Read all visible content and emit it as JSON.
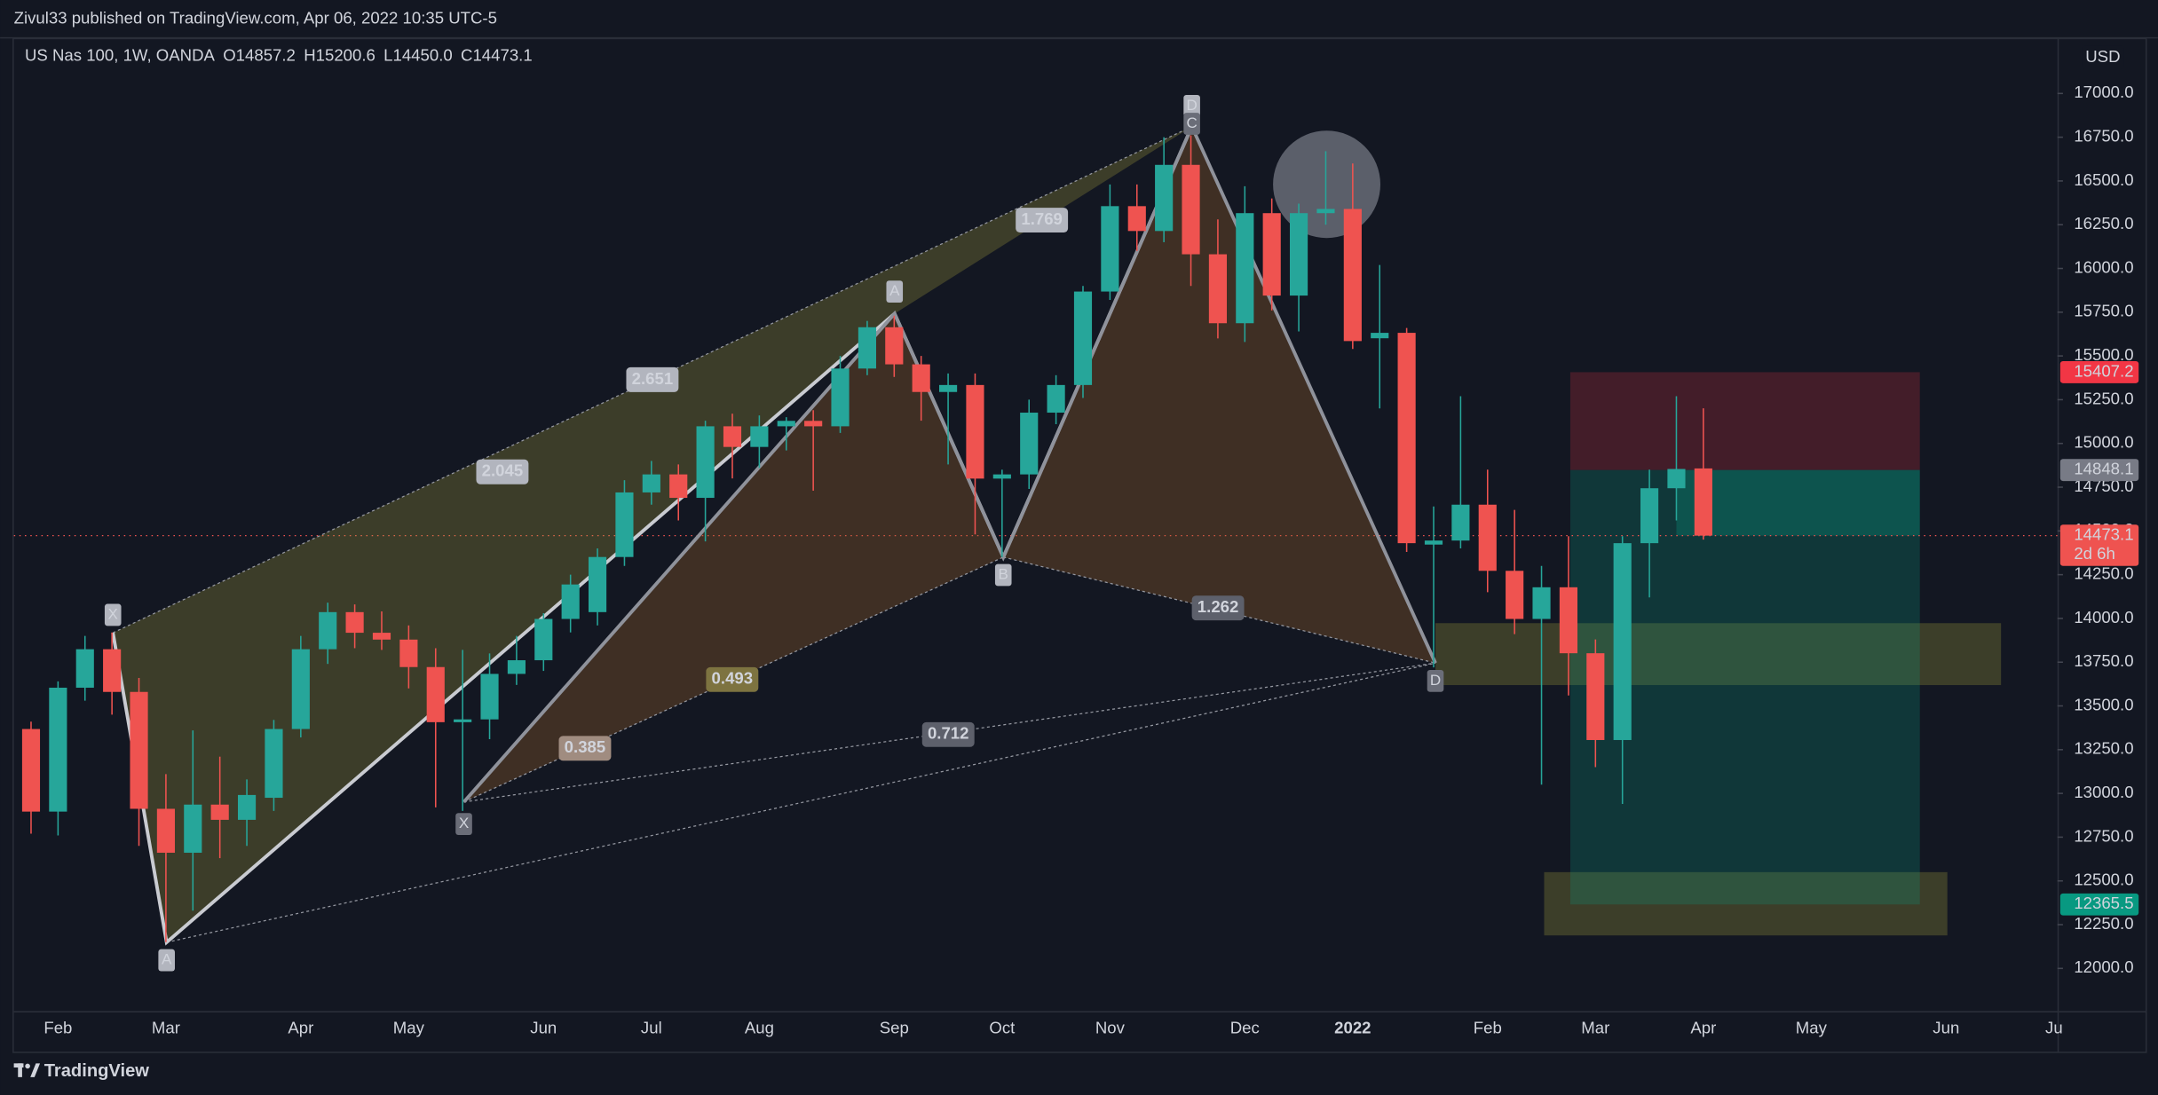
{
  "header": {
    "publisher": "Zivul33 published on TradingView.com, Apr 06, 2022 10:35 UTC-5"
  },
  "footer": {
    "brand": "TradingView"
  },
  "chart_data": {
    "type": "candlestick",
    "symbol": "US Nas 100, 1W, OANDA",
    "ohlc_legend": [
      {
        "letter": "O",
        "value": "14857.2"
      },
      {
        "letter": "H",
        "value": "15200.6"
      },
      {
        "letter": "L",
        "value": "14450.0"
      },
      {
        "letter": "C",
        "value": "14473.1"
      }
    ],
    "currency": "USD",
    "up_color": "#26a69a",
    "down_color": "#ef5350",
    "categories": [
      null,
      "Feb",
      null,
      null,
      null,
      "Mar",
      null,
      null,
      null,
      null,
      "Apr",
      null,
      null,
      null,
      "May",
      null,
      null,
      null,
      null,
      "Jun",
      null,
      null,
      null,
      "Jul",
      null,
      null,
      null,
      "Aug",
      null,
      null,
      null,
      null,
      "Sep",
      null,
      null,
      null,
      "Oct",
      null,
      null,
      null,
      "Nov",
      null,
      null,
      null,
      null,
      "Dec",
      null,
      null,
      null,
      "2022",
      null,
      null,
      null,
      null,
      "Feb",
      null,
      null,
      null,
      "Mar",
      null,
      null,
      null,
      "Apr",
      null,
      null,
      null,
      "May",
      null,
      null,
      null,
      null,
      "Jun",
      null,
      null,
      null,
      "Ju"
    ],
    "open": [
      13368,
      12896,
      13604,
      13824,
      13580,
      12912,
      12661,
      12936,
      12849,
      12975,
      13368,
      13824,
      14036,
      13918,
      13879,
      13722,
      13407,
      13423,
      13683,
      13761,
      13997,
      14036,
      14351,
      14720,
      14823,
      14689,
      15098,
      14980,
      15098,
      15129,
      15098,
      15428,
      15664,
      15452,
      15294,
      15334,
      14799,
      14823,
      15176,
      15334,
      15868,
      16356,
      16214,
      16592,
      16081,
      15687,
      16316,
      15845,
      16316,
      16340,
      15601,
      15632,
      14422,
      14445,
      14650,
      14272,
      13997,
      14178,
      13801,
      13305,
      14430,
      14744,
      14857.2,
      null,
      null,
      null,
      null,
      null,
      null,
      null,
      null,
      null,
      null,
      null,
      null,
      null
    ],
    "high": [
      13410,
      13640,
      13900,
      13920,
      13660,
      13110,
      13360,
      13210,
      13080,
      13420,
      13900,
      14090,
      14080,
      14040,
      13960,
      13830,
      13820,
      13800,
      13900,
      14030,
      14250,
      14400,
      14790,
      14900,
      14880,
      15130,
      15170,
      15160,
      15150,
      15190,
      15500,
      15700,
      15730,
      15500,
      15400,
      15400,
      14850,
      15250,
      15390,
      15900,
      16480,
      16480,
      16750,
      16760,
      16280,
      16470,
      16400,
      16370,
      16670,
      16600,
      16020,
      15660,
      14640,
      15270,
      14850,
      14620,
      14300,
      14470,
      13880,
      14470,
      14850,
      15270,
      15200.6,
      null,
      null,
      null,
      null,
      null,
      null,
      null,
      null,
      null,
      null,
      null,
      null,
      null
    ],
    "low": [
      12770,
      12760,
      13530,
      13450,
      12700,
      12150,
      12330,
      12630,
      12700,
      12900,
      13320,
      13740,
      13830,
      13820,
      13600,
      12920,
      12900,
      13310,
      13620,
      13700,
      13920,
      13960,
      14300,
      14650,
      14560,
      14440,
      14800,
      14860,
      14960,
      14730,
      15060,
      15390,
      15380,
      15130,
      14880,
      14480,
      14350,
      14740,
      15110,
      15260,
      15820,
      16100,
      16150,
      15900,
      15600,
      15580,
      15760,
      15640,
      16250,
      15540,
      15200,
      14380,
      13720,
      14400,
      14150,
      13910,
      13050,
      13560,
      13150,
      12940,
      14120,
      14560,
      14450,
      null,
      null,
      null,
      null,
      null,
      null,
      null,
      null,
      null,
      null,
      null,
      null,
      null
    ],
    "close": [
      12896,
      13604,
      13824,
      13580,
      12912,
      12661,
      12936,
      12849,
      12991,
      13368,
      13824,
      14036,
      13918,
      13879,
      13722,
      13407,
      13423,
      13683,
      13761,
      13997,
      14194,
      14351,
      14720,
      14823,
      14689,
      15098,
      14980,
      15098,
      15129,
      15098,
      15428,
      15664,
      15452,
      15294,
      15334,
      14799,
      14823,
      15176,
      15334,
      15868,
      16356,
      16214,
      16592,
      16081,
      15687,
      16316,
      15845,
      16316,
      16340,
      15585,
      15632,
      14430,
      14445,
      14650,
      14272,
      13997,
      14178,
      13801,
      13305,
      14430,
      14744,
      14854,
      14473.1,
      null,
      null,
      null,
      null,
      null,
      null,
      null,
      null,
      null,
      null,
      null,
      null,
      null
    ],
    "ylim": [
      11756,
      17314
    ],
    "yticks": [
      {
        "value": 12000,
        "label": "12000.0"
      },
      {
        "value": 12250,
        "label": "12250.0"
      },
      {
        "value": 12500,
        "label": "12500.0"
      },
      {
        "value": 12750,
        "label": "12750.0"
      },
      {
        "value": 13000,
        "label": "13000.0"
      },
      {
        "value": 13250,
        "label": "13250.0"
      },
      {
        "value": 13500,
        "label": "13500.0"
      },
      {
        "value": 13750,
        "label": "13750.0"
      },
      {
        "value": 14000,
        "label": "14000.0"
      },
      {
        "value": 14250,
        "label": "14250.0"
      },
      {
        "value": 14500,
        "label": "14500.0"
      },
      {
        "value": 14750,
        "label": "14750.0"
      },
      {
        "value": 15000,
        "label": "15000.0"
      },
      {
        "value": 15250,
        "label": "15250.0"
      },
      {
        "value": 15500,
        "label": "15500.0"
      },
      {
        "value": 15750,
        "label": "15750.0"
      },
      {
        "value": 16000,
        "label": "16000.0"
      },
      {
        "value": 16250,
        "label": "16250.0"
      },
      {
        "value": 16500,
        "label": "16500.0"
      },
      {
        "value": 16750,
        "label": "16750.0"
      },
      {
        "value": 17000,
        "label": "17000.0"
      }
    ],
    "grid": false,
    "position": {
      "stop": 15407.2,
      "entry": 14848.1,
      "target": 12365.5,
      "stop_color": "#f23645",
      "entry_color": "#787b86",
      "target_color": "#089981"
    },
    "countdown": "2d 6h",
    "point_labels": [
      "X",
      "A",
      "D",
      "C",
      "A",
      "B",
      "X",
      "D"
    ],
    "ratio_labels": [
      "2.651",
      "2.045",
      "1.769",
      "0.493",
      "0.385",
      "0.712",
      "1.262"
    ]
  }
}
